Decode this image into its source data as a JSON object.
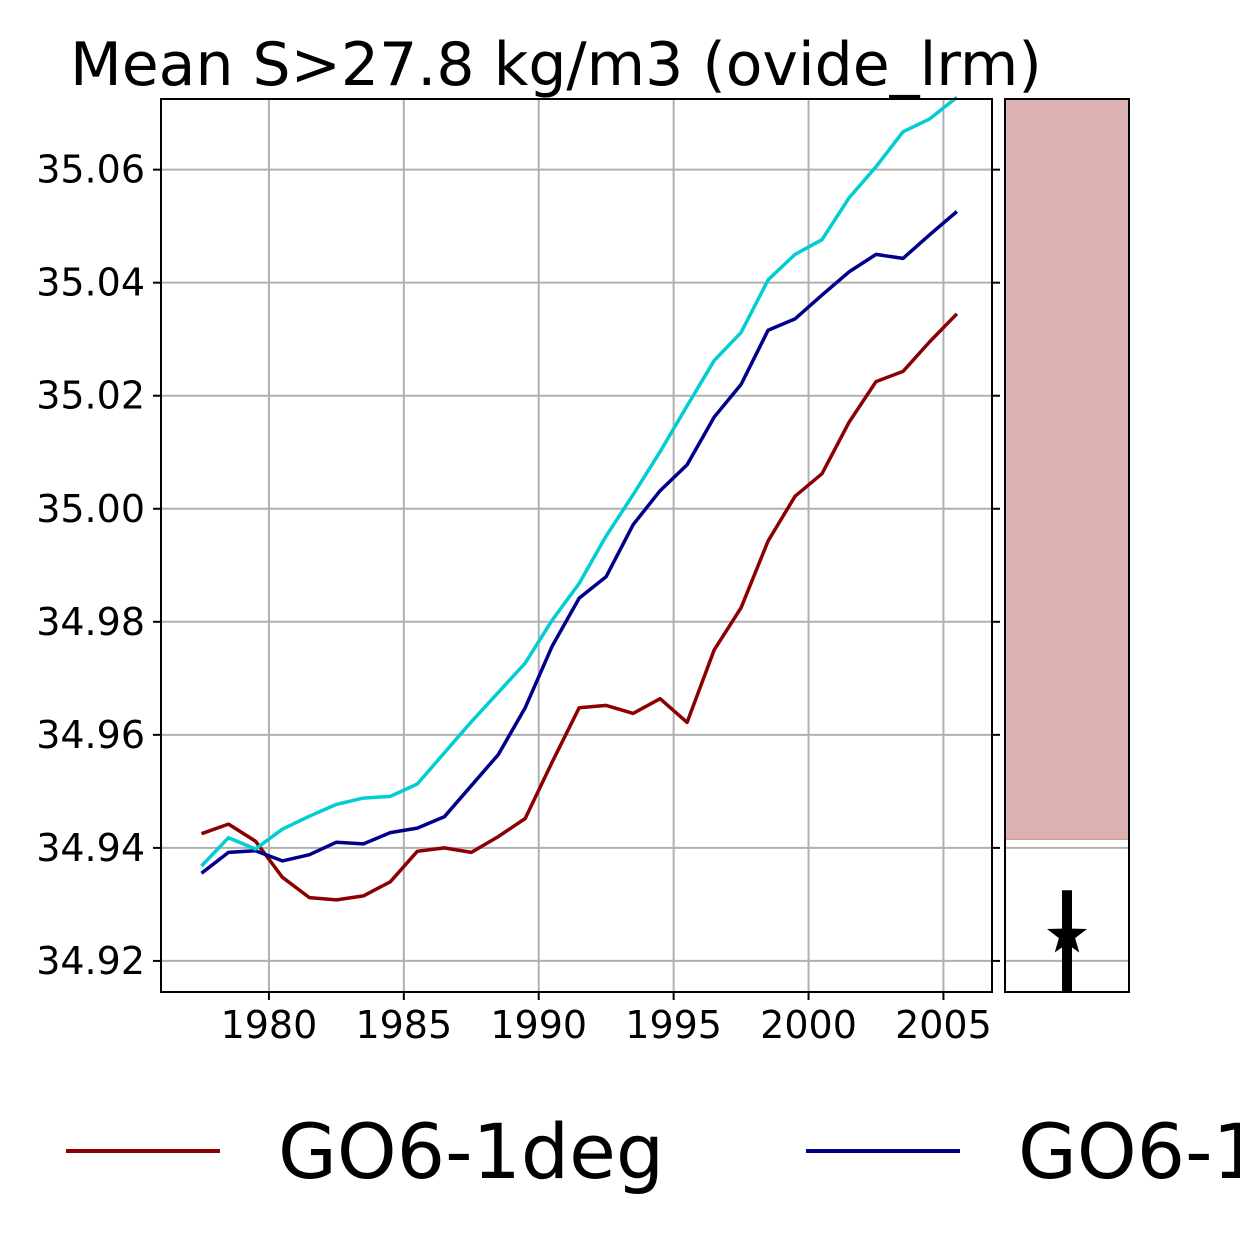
{
  "chart_data": {
    "type": "line",
    "title": "Mean S>27.8 kg/m3 (ovide_lrm)",
    "xlabel": "",
    "ylabel": "",
    "xlim": [
      1976,
      2006.8
    ],
    "ylim": [
      34.9145,
      35.0725
    ],
    "xticks": [
      1980,
      1985,
      1990,
      1995,
      2000,
      2005
    ],
    "yticks": [
      34.92,
      34.94,
      34.96,
      34.98,
      35.0,
      35.02,
      35.04,
      35.06
    ],
    "ytick_labels": [
      "34.92",
      "34.94",
      "34.96",
      "34.98",
      "35.00",
      "35.02",
      "35.04",
      "35.06"
    ],
    "grid": true,
    "legend_position": "bottom",
    "x": [
      1977.5,
      1978.5,
      1979.5,
      1980.5,
      1981.5,
      1982.5,
      1983.5,
      1984.5,
      1985.5,
      1986.5,
      1987.5,
      1988.5,
      1989.5,
      1990.5,
      1991.5,
      1992.5,
      1993.5,
      1994.5,
      1995.5,
      1996.5,
      1997.5,
      1998.5,
      1999.5,
      2000.5,
      2001.5,
      2002.5,
      2003.5,
      2004.5,
      2005.5
    ],
    "series": [
      {
        "name": "GO6-1deg",
        "color": "#8b0000",
        "values": [
          34.9425,
          34.9442,
          34.9412,
          34.9348,
          34.9312,
          34.9308,
          34.9315,
          34.934,
          34.9394,
          34.94,
          34.9392,
          34.942,
          34.9452,
          34.9552,
          34.9648,
          34.9652,
          34.9638,
          34.9664,
          34.9622,
          34.975,
          34.9825,
          34.9943,
          35.0022,
          35.0062,
          35.0153,
          35.0225,
          35.0243,
          35.0296,
          35.0345
        ]
      },
      {
        "name": "GO6-1",
        "color": "#00008b",
        "values": [
          34.9355,
          34.9392,
          34.9395,
          34.9377,
          34.9388,
          34.941,
          34.9407,
          34.9427,
          34.9435,
          34.9455,
          34.951,
          34.9565,
          34.9648,
          34.9757,
          34.9842,
          34.988,
          34.9972,
          35.0032,
          35.0078,
          35.0162,
          35.022,
          35.0316,
          35.0336,
          35.0378,
          35.0419,
          35.045,
          35.0443,
          35.0485,
          35.0526
        ]
      },
      {
        "name": "",
        "color": "#00ced1",
        "values": [
          34.9368,
          34.9418,
          34.9398,
          34.9433,
          34.9456,
          34.9477,
          34.9488,
          34.9491,
          34.9513,
          34.9568,
          34.9623,
          34.9675,
          34.9727,
          34.9803,
          34.9868,
          34.9952,
          35.0025,
          35.0101,
          35.0182,
          35.0262,
          35.0312,
          35.0405,
          35.045,
          35.0476,
          35.055,
          35.0605,
          35.0667,
          35.069,
          35.0728
        ]
      }
    ],
    "side_panel": {
      "shaded_range": [
        34.9415,
        35.0725
      ],
      "shade_color": "#dbb1b1",
      "marker": "star",
      "marker_value": 34.9245,
      "errorbar_range": [
        34.9145,
        34.9325
      ]
    }
  },
  "legend": {
    "items": [
      {
        "label": "GO6-1deg",
        "color": "#8b0000"
      },
      {
        "label": "GO6-1",
        "color": "#00008b"
      }
    ]
  }
}
